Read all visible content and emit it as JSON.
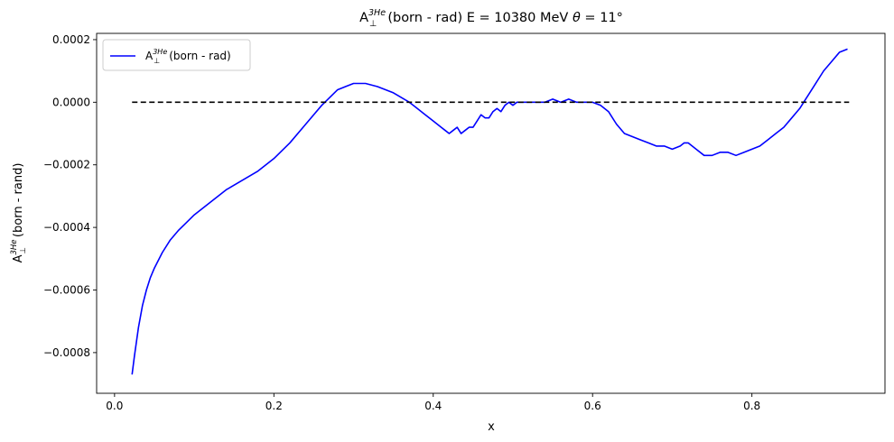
{
  "chart_data": {
    "type": "line",
    "title": {
      "main": "A",
      "sub": "⊥",
      "sup": "3He",
      "rest": "(born - rad) E = 10380 MeV ",
      "theta": "θ",
      "angle": " = 11°"
    },
    "xlabel": "x",
    "ylabel": {
      "main": "A",
      "sub": "⊥",
      "sup": "3He",
      "rest": "(born - rand)"
    },
    "xlim": [
      -0.0225,
      0.967
    ],
    "ylim": [
      -0.00093,
      0.00022
    ],
    "xticks": [
      0.0,
      0.2,
      0.4,
      0.6,
      0.8
    ],
    "xtick_labels": [
      "0.0",
      "0.2",
      "0.4",
      "0.6",
      "0.8"
    ],
    "yticks": [
      -0.0008,
      -0.0006,
      -0.0004,
      -0.0002,
      0.0,
      0.0002
    ],
    "ytick_labels": [
      "−0.0008",
      "−0.0006",
      "−0.0004",
      "−0.0002",
      "0.0000",
      "0.0002"
    ],
    "grid": false,
    "legend": {
      "placement": "upper left",
      "entries": [
        {
          "main": "A",
          "sub": "⊥",
          "sup": "3He",
          "rest": "(born - rad)",
          "color": "#0000ff"
        }
      ]
    },
    "series": [
      {
        "name": "A⊥3He(born - rad)",
        "color": "#0000ff",
        "x": [
          0.022,
          0.025,
          0.03,
          0.035,
          0.04,
          0.045,
          0.05,
          0.06,
          0.07,
          0.08,
          0.09,
          0.1,
          0.12,
          0.14,
          0.16,
          0.18,
          0.2,
          0.22,
          0.24,
          0.26,
          0.28,
          0.3,
          0.315,
          0.33,
          0.35,
          0.37,
          0.38,
          0.39,
          0.4,
          0.41,
          0.415,
          0.42,
          0.425,
          0.43,
          0.435,
          0.44,
          0.445,
          0.45,
          0.455,
          0.46,
          0.465,
          0.47,
          0.475,
          0.48,
          0.485,
          0.49,
          0.495,
          0.5,
          0.505,
          0.51,
          0.52,
          0.53,
          0.54,
          0.55,
          0.56,
          0.57,
          0.58,
          0.59,
          0.6,
          0.61,
          0.62,
          0.63,
          0.64,
          0.65,
          0.66,
          0.67,
          0.68,
          0.69,
          0.7,
          0.71,
          0.715,
          0.72,
          0.725,
          0.73,
          0.74,
          0.75,
          0.76,
          0.77,
          0.78,
          0.79,
          0.8,
          0.81,
          0.82,
          0.83,
          0.84,
          0.85,
          0.86,
          0.87,
          0.88,
          0.89,
          0.9,
          0.91,
          0.92
        ],
        "y": [
          -0.00087,
          -0.00081,
          -0.00072,
          -0.00065,
          -0.0006,
          -0.00056,
          -0.00053,
          -0.00048,
          -0.00044,
          -0.00041,
          -0.000385,
          -0.00036,
          -0.00032,
          -0.00028,
          -0.00025,
          -0.00022,
          -0.00018,
          -0.00013,
          -7e-05,
          -1e-05,
          4e-05,
          6e-05,
          6e-05,
          5e-05,
          3e-05,
          0.0,
          -2e-05,
          -4e-05,
          -6e-05,
          -8e-05,
          -9e-05,
          -0.0001,
          -9e-05,
          -8e-05,
          -0.0001,
          -9e-05,
          -8e-05,
          -8e-05,
          -6e-05,
          -4e-05,
          -5e-05,
          -5e-05,
          -3e-05,
          -2e-05,
          -3e-05,
          -1e-05,
          0.0,
          -1e-05,
          0.0,
          0.0,
          0.0,
          0.0,
          0.0,
          1e-05,
          0.0,
          1e-05,
          0.0,
          0.0,
          0.0,
          -1e-05,
          -3e-05,
          -7e-05,
          -0.0001,
          -0.00011,
          -0.00012,
          -0.00013,
          -0.00014,
          -0.00014,
          -0.00015,
          -0.00014,
          -0.00013,
          -0.00013,
          -0.00014,
          -0.00015,
          -0.00017,
          -0.00017,
          -0.00016,
          -0.00016,
          -0.00017,
          -0.00016,
          -0.00015,
          -0.00014,
          -0.00012,
          -0.0001,
          -8e-05,
          -5e-05,
          -2e-05,
          2e-05,
          6e-05,
          0.0001,
          0.00013,
          0.00016,
          0.00017
        ]
      },
      {
        "name": "",
        "color": "#000000",
        "dash": "dashed",
        "x": [
          0.022,
          0.922
        ],
        "y": [
          0.0,
          0.0
        ]
      }
    ]
  }
}
